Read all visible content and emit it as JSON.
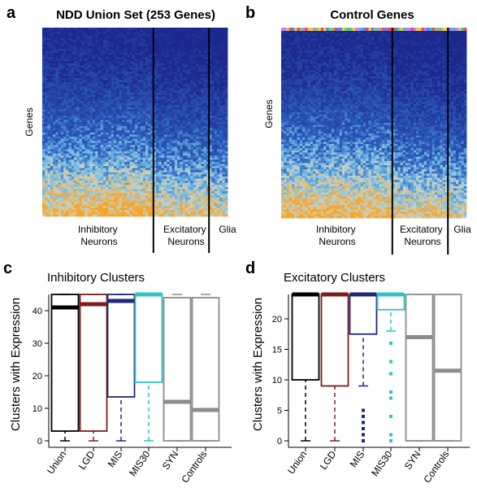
{
  "panels": {
    "a": {
      "letter": "a",
      "title": "NDD Union Set (253 Genes)",
      "ylabel": "Genes",
      "groups": [
        "Inhibitory Neurons",
        "Excitatory Neurons",
        "Glia"
      ]
    },
    "b": {
      "letter": "b",
      "title": "Control Genes",
      "ylabel": "Genes",
      "groups": [
        "Inhibitory Neurons",
        "Excitatory Neurons",
        "Glia"
      ]
    },
    "c": {
      "letter": "c"
    },
    "d": {
      "letter": "d"
    }
  },
  "colors": {
    "heat_low": "#1f2f8f",
    "heat_mid": "#5fb2e0",
    "heat_high": "#f5a623",
    "Union": "#000000",
    "LGD": "#7f1d1d",
    "MIS": "#1f2a78",
    "MIS30": "#2ec4c4",
    "SYN": "#8c8c8c",
    "Controls": "#8c8c8c"
  },
  "chart_data": [
    {
      "type": "heatmap",
      "title": "NDD Union Set (253 Genes)",
      "ylabel": "Genes",
      "column_groups": [
        "Inhibitory Neurons",
        "Excitatory Neurons",
        "Glia"
      ],
      "group_fractions": [
        0.6,
        0.3,
        0.1
      ],
      "trend": "expression increases toward lower rows"
    },
    {
      "type": "heatmap",
      "title": "Control Genes",
      "ylabel": "Genes",
      "column_groups": [
        "Inhibitory Neurons",
        "Excitatory Neurons",
        "Glia"
      ],
      "group_fractions": [
        0.6,
        0.3,
        0.1
      ],
      "trend": "expression increases toward lower rows"
    },
    {
      "type": "box",
      "title": "Inhibitory Clusters",
      "ylabel": "Clusters with Expression",
      "ylim": [
        0,
        45
      ],
      "yticks": [
        0,
        10,
        20,
        30,
        40
      ],
      "categories": [
        "Union",
        "LGD",
        "MIS",
        "MIS30",
        "SYN",
        "Controls"
      ],
      "boxes": [
        {
          "q1": 3,
          "median": 41,
          "q3": 45,
          "whisker_low": 0,
          "whisker_high": 45
        },
        {
          "q1": 3,
          "median": 42,
          "q3": 45,
          "whisker_low": 0,
          "whisker_high": 45
        },
        {
          "q1": 13.5,
          "median": 43,
          "q3": 45,
          "whisker_low": 0,
          "whisker_high": 45
        },
        {
          "q1": 18,
          "median": 45,
          "q3": 45,
          "whisker_low": 0,
          "whisker_high": 45
        },
        {
          "q1": 0,
          "median": 12,
          "q3": 44,
          "whisker_low": 0,
          "whisker_high": 45
        },
        {
          "q1": 0,
          "median": 9.5,
          "q3": 44,
          "whisker_low": 0,
          "whisker_high": 45
        }
      ]
    },
    {
      "type": "box",
      "title": "Excitatory Clusters",
      "ylabel": "Clusters with Expression",
      "ylim": [
        0,
        24
      ],
      "yticks": [
        0,
        5,
        10,
        15,
        20
      ],
      "categories": [
        "Union",
        "LGD",
        "MIS",
        "MIS30",
        "SYN",
        "Controls"
      ],
      "boxes": [
        {
          "q1": 10,
          "median": 24,
          "q3": 24,
          "whisker_low": 0,
          "whisker_high": 24,
          "outliers": []
        },
        {
          "q1": 9,
          "median": 24,
          "q3": 24,
          "whisker_low": 0,
          "whisker_high": 24,
          "outliers": []
        },
        {
          "q1": 17.5,
          "median": 24,
          "q3": 24,
          "whisker_low": 9,
          "whisker_high": 24,
          "outliers": [
            0,
            1,
            2,
            3,
            4,
            5
          ]
        },
        {
          "q1": 21.5,
          "median": 24,
          "q3": 24,
          "whisker_low": 18,
          "whisker_high": 24,
          "outliers": [
            0,
            1,
            4,
            7,
            8,
            11,
            13,
            16
          ]
        },
        {
          "q1": 0,
          "median": 17,
          "q3": 24,
          "whisker_low": 0,
          "whisker_high": 24,
          "outliers": []
        },
        {
          "q1": 0,
          "median": 11.5,
          "q3": 24,
          "whisker_low": 0,
          "whisker_high": 24,
          "outliers": []
        }
      ]
    }
  ]
}
